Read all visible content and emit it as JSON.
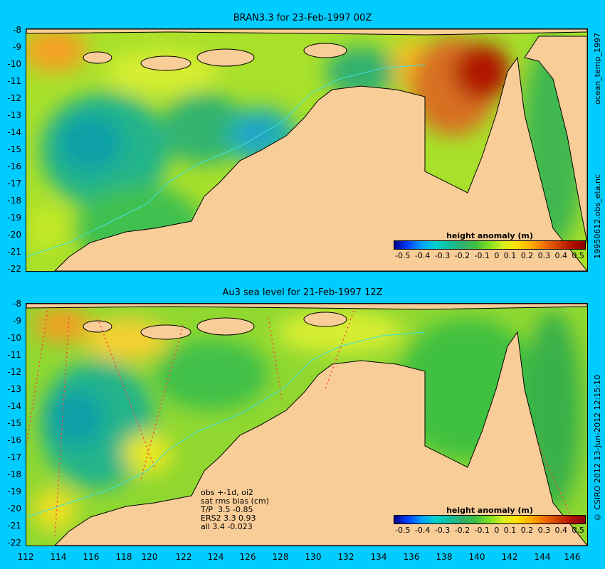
{
  "top_panel": {
    "title": "BRAN3.3 for 23-Feb-1997 00Z",
    "side_top": "ocean_temp_1997",
    "side_bottom": "19950612.obs_eta.nc",
    "legend_title": "height anomaly (m)"
  },
  "bottom_panel": {
    "title": "Au3 sea level  for 21-Feb-1997 12Z",
    "side_bottom": "© CSIRO 2012  13-Jun-2012 12:15:10",
    "legend_title": "height anomaly (m)",
    "stats": "obs +-1d, oi2\nsat rms bias (cm)\nT/P  3.5 -0.85\nERS2 3.3 0.93\nall 3.4 -0.023"
  },
  "legend_ticks": [
    "-0.5",
    "-0.4",
    "-0.3",
    "-0.2",
    "-0.1",
    "0",
    "0.1",
    "0.2",
    "0.3",
    "0.4",
    "0.5"
  ],
  "y_ticks": [
    "-8",
    "-9",
    "-10",
    "-11",
    "-12",
    "-13",
    "-14",
    "-15",
    "-16",
    "-17",
    "-18",
    "-19",
    "-20",
    "-21",
    "-22"
  ],
  "x_ticks": [
    "112",
    "114",
    "116",
    "118",
    "120",
    "122",
    "124",
    "126",
    "128",
    "130",
    "132",
    "134",
    "136",
    "138",
    "140",
    "142",
    "144",
    "146"
  ],
  "colors": {
    "background": "#00ccff",
    "land": "#f9cd98"
  }
}
